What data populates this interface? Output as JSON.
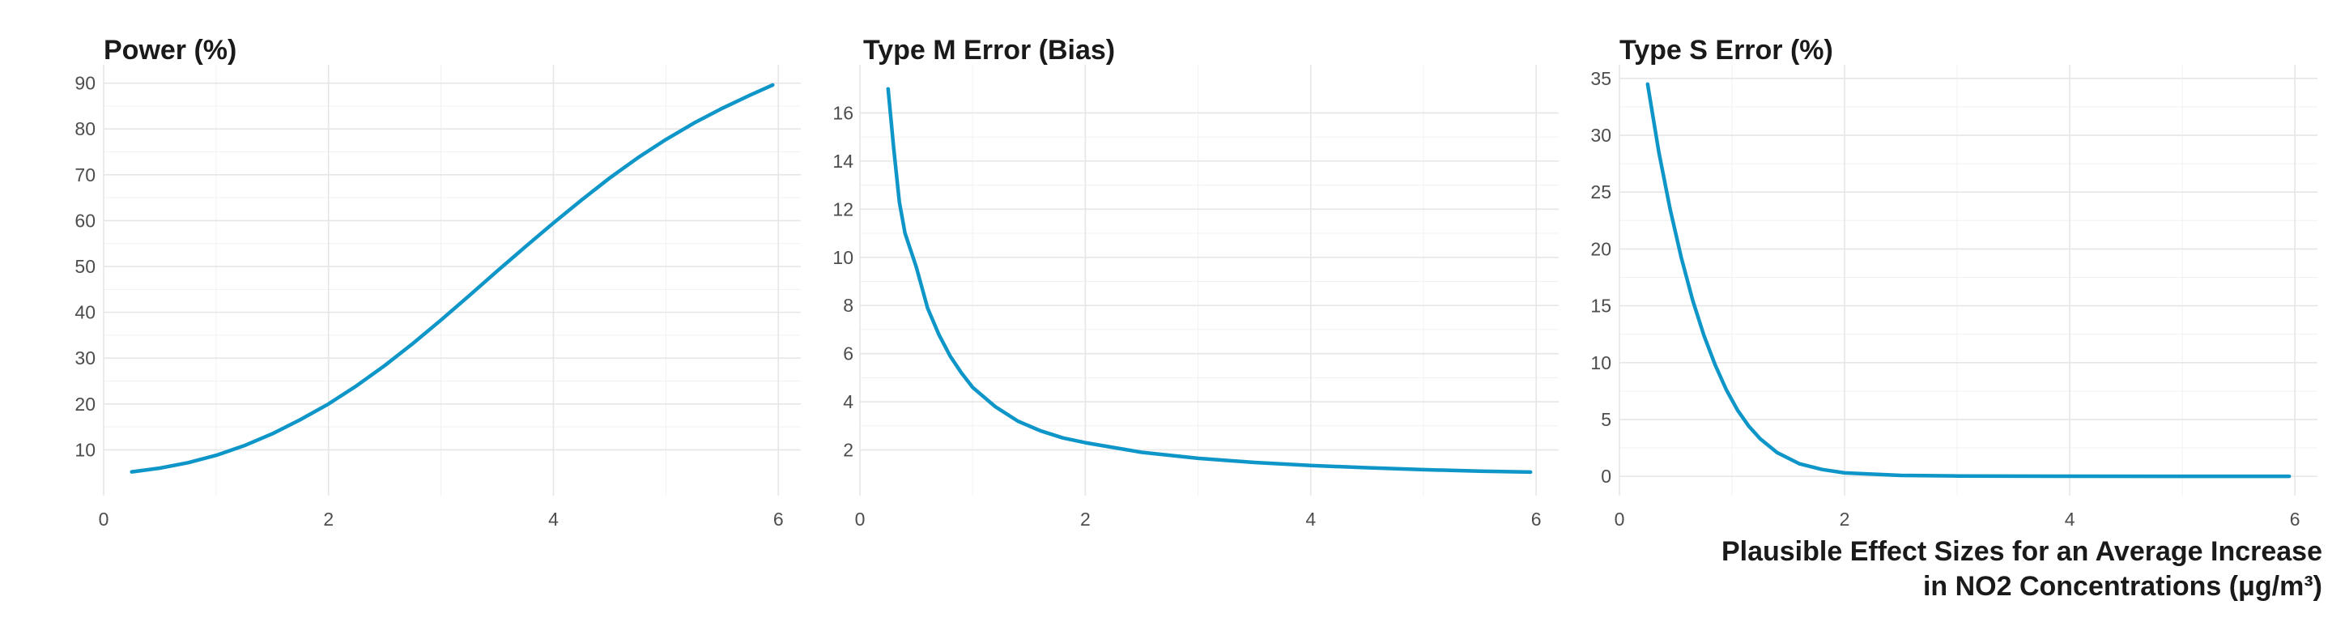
{
  "theme": {
    "line_color": "#0f96c8",
    "text_color": "#1a1a1a",
    "tick_color": "#4d4d4d",
    "grid_color": "#e6e6e6"
  },
  "chart_data": [
    {
      "type": "line",
      "title": "Power (%)",
      "xlabel": "",
      "ylabel": "",
      "xlim": [
        0,
        6.2
      ],
      "ylim": [
        0,
        94
      ],
      "x_ticks": [
        0,
        2,
        4,
        6
      ],
      "y_ticks": [
        10,
        20,
        30,
        40,
        50,
        60,
        70,
        80,
        90
      ],
      "series": [
        {
          "name": "Power",
          "x": [
            0.25,
            0.5,
            0.75,
            1.0,
            1.25,
            1.5,
            1.75,
            2.0,
            2.25,
            2.5,
            2.75,
            3.0,
            3.25,
            3.5,
            3.75,
            4.0,
            4.25,
            4.5,
            4.75,
            5.0,
            5.25,
            5.5,
            5.75,
            5.95
          ],
          "y": [
            5.2,
            6.0,
            7.2,
            8.8,
            10.9,
            13.5,
            16.6,
            20.0,
            24.0,
            28.4,
            33.2,
            38.3,
            43.6,
            49.0,
            54.3,
            59.5,
            64.5,
            69.3,
            73.7,
            77.7,
            81.3,
            84.5,
            87.4,
            89.6
          ]
        }
      ]
    },
    {
      "type": "line",
      "title": "Type M Error (Bias)",
      "xlabel": "",
      "ylabel": "",
      "xlim": [
        0,
        6.2
      ],
      "ylim": [
        0.1,
        18
      ],
      "x_ticks": [
        0,
        2,
        4,
        6
      ],
      "y_ticks": [
        2,
        4,
        6,
        8,
        10,
        12,
        14,
        16
      ],
      "series": [
        {
          "name": "Type M Error",
          "x": [
            0.25,
            0.3,
            0.35,
            0.4,
            0.5,
            0.6,
            0.7,
            0.8,
            0.9,
            1.0,
            1.2,
            1.4,
            1.6,
            1.8,
            2.0,
            2.5,
            3.0,
            3.5,
            4.0,
            4.5,
            5.0,
            5.5,
            5.95
          ],
          "y": [
            17.0,
            14.5,
            12.3,
            11.0,
            9.6,
            7.9,
            6.8,
            5.9,
            5.2,
            4.6,
            3.8,
            3.2,
            2.8,
            2.5,
            2.3,
            1.9,
            1.65,
            1.48,
            1.35,
            1.26,
            1.18,
            1.12,
            1.08
          ]
        }
      ]
    },
    {
      "type": "line",
      "title": "Type S Error (%)",
      "xlabel": "Plausible Effect Sizes for an Average Increase\nin NO2 Concentrations (μg/m³)",
      "ylabel": "",
      "xlim": [
        0,
        6.2
      ],
      "ylim": [
        -1.7,
        36.2
      ],
      "x_ticks": [
        0,
        2,
        4,
        6
      ],
      "y_ticks": [
        0,
        5,
        10,
        15,
        20,
        25,
        30,
        35
      ],
      "series": [
        {
          "name": "Type S Error",
          "x": [
            0.25,
            0.35,
            0.45,
            0.55,
            0.65,
            0.75,
            0.85,
            0.95,
            1.05,
            1.15,
            1.25,
            1.4,
            1.6,
            1.8,
            2.0,
            2.5,
            3.0,
            4.0,
            5.0,
            5.95
          ],
          "y": [
            34.5,
            28.5,
            23.5,
            19.2,
            15.5,
            12.4,
            9.8,
            7.6,
            5.8,
            4.4,
            3.3,
            2.1,
            1.1,
            0.6,
            0.3,
            0.08,
            0.03,
            0.01,
            0.0,
            0.0
          ]
        }
      ]
    }
  ],
  "caption": {
    "line1": "Plausible Effect Sizes for an Average Increase",
    "line2": "in NO2 Concentrations (μg/m³)"
  }
}
